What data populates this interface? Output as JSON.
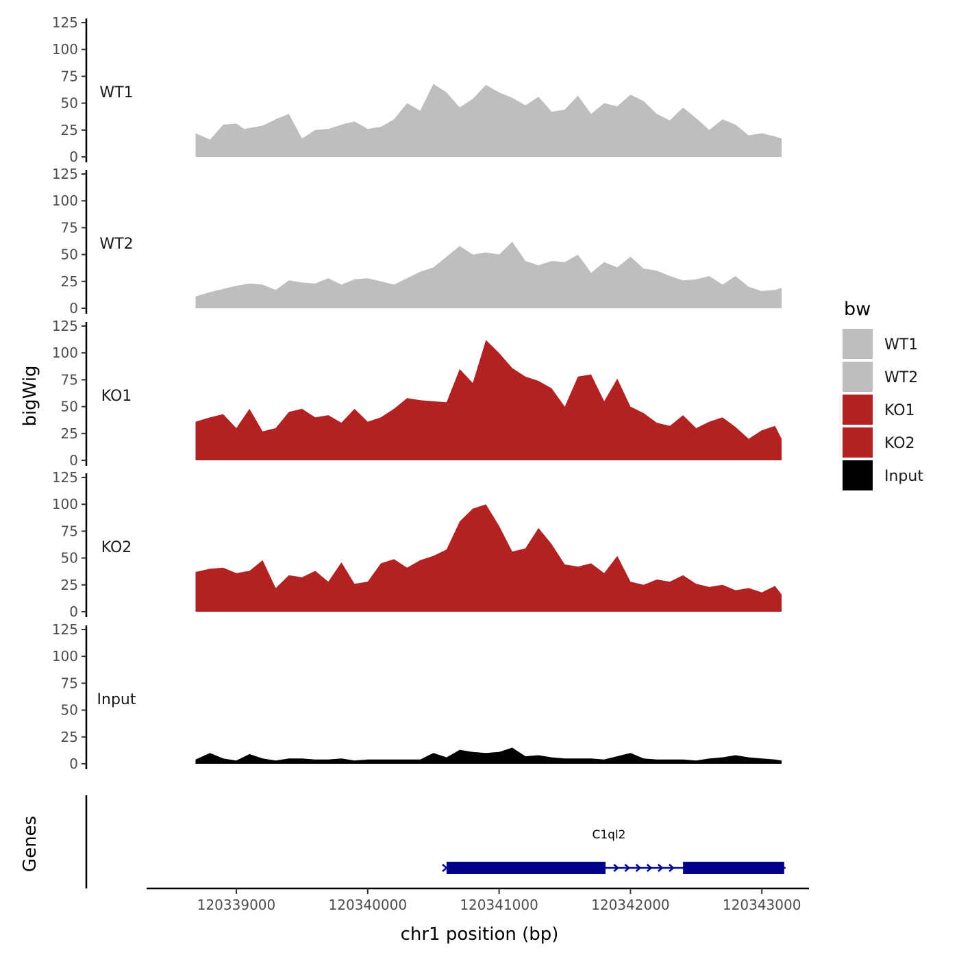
{
  "chart_data": {
    "type": "area",
    "ylabel": "bigWig",
    "xlabel": "chr1 position (bp)",
    "ylim": [
      0,
      125
    ],
    "y_ticks": [
      "0",
      "25",
      "50",
      "75",
      "100",
      "125"
    ],
    "xlim": [
      120338400,
      120343400
    ],
    "x_ticks": [
      {
        "value": 120339000,
        "label": "120339000"
      },
      {
        "value": 120340000,
        "label": "120340000"
      },
      {
        "value": 120341000,
        "label": "120341000"
      },
      {
        "value": 120342000,
        "label": "120342000"
      },
      {
        "value": 120343000,
        "label": "120343000"
      }
    ],
    "legend": {
      "title": "bw",
      "position": "right",
      "entries": [
        {
          "label": "WT1",
          "color": "#BEBEBE"
        },
        {
          "label": "WT2",
          "color": "#BEBEBE"
        },
        {
          "label": "KO1",
          "color": "#B22222"
        },
        {
          "label": "KO2",
          "color": "#B22222"
        },
        {
          "label": "Input",
          "color": "#000000"
        }
      ]
    },
    "series": [
      {
        "name": "WT1",
        "color": "#BEBEBE",
        "x": [
          120338690,
          120338800,
          120338900,
          120339000,
          120339060,
          120339100,
          120339200,
          120339300,
          120339400,
          120339500,
          120339600,
          120339700,
          120339800,
          120339900,
          120340000,
          120340100,
          120340200,
          120340300,
          120340400,
          120340500,
          120340600,
          120340700,
          120340800,
          120340900,
          120341000,
          120341100,
          120341200,
          120341300,
          120341400,
          120341500,
          120341600,
          120341700,
          120341800,
          120341900,
          120342000,
          120342100,
          120342200,
          120342300,
          120342400,
          120342500,
          120342600,
          120342700,
          120342800,
          120342900,
          120343000,
          120343100,
          120343150
        ],
        "values": [
          22,
          16,
          30,
          31,
          26,
          27,
          29,
          35,
          40,
          17,
          25,
          26,
          30,
          33,
          26,
          28,
          35,
          50,
          43,
          68,
          60,
          46,
          54,
          67,
          60,
          55,
          48,
          56,
          42,
          44,
          57,
          40,
          50,
          47,
          58,
          52,
          40,
          34,
          46,
          36,
          25,
          35,
          30,
          20,
          22,
          19,
          17
        ]
      },
      {
        "name": "WT2",
        "color": "#BEBEBE",
        "x": [
          120338690,
          120338800,
          120338900,
          120339000,
          120339100,
          120339200,
          120339300,
          120339400,
          120339500,
          120339600,
          120339700,
          120339800,
          120339900,
          120340000,
          120340100,
          120340200,
          120340300,
          120340400,
          120340500,
          120340600,
          120340700,
          120340800,
          120340900,
          120341000,
          120341100,
          120341200,
          120341300,
          120341400,
          120341500,
          120341600,
          120341700,
          120341800,
          120341900,
          120342000,
          120342100,
          120342200,
          120342300,
          120342400,
          120342500,
          120342600,
          120342700,
          120342800,
          120342900,
          120343000,
          120343100,
          120343150
        ],
        "values": [
          11,
          15,
          18,
          21,
          23,
          22,
          17,
          26,
          24,
          23,
          28,
          22,
          27,
          28,
          25,
          22,
          28,
          34,
          38,
          48,
          58,
          50,
          52,
          50,
          62,
          44,
          40,
          44,
          43,
          50,
          33,
          43,
          38,
          48,
          37,
          35,
          30,
          26,
          27,
          30,
          22,
          30,
          20,
          16,
          17,
          19
        ]
      },
      {
        "name": "KO1",
        "color": "#B22222",
        "x": [
          120338690,
          120338800,
          120338900,
          120339000,
          120339100,
          120339200,
          120339300,
          120339400,
          120339500,
          120339600,
          120339700,
          120339800,
          120339900,
          120340000,
          120340100,
          120340200,
          120340300,
          120340400,
          120340500,
          120340600,
          120340700,
          120340800,
          120340900,
          120341000,
          120341100,
          120341200,
          120341300,
          120341400,
          120341500,
          120341600,
          120341700,
          120341800,
          120341900,
          120342000,
          120342100,
          120342200,
          120342300,
          120342400,
          120342500,
          120342600,
          120342700,
          120342800,
          120342900,
          120343000,
          120343100,
          120343150
        ],
        "values": [
          36,
          40,
          43,
          30,
          48,
          27,
          30,
          45,
          48,
          40,
          42,
          35,
          48,
          36,
          40,
          48,
          58,
          56,
          55,
          54,
          85,
          72,
          112,
          100,
          86,
          78,
          74,
          67,
          50,
          78,
          80,
          55,
          76,
          50,
          44,
          35,
          32,
          42,
          30,
          36,
          40,
          31,
          20,
          28,
          32,
          20
        ]
      },
      {
        "name": "KO2",
        "color": "#B22222",
        "x": [
          120338690,
          120338800,
          120338900,
          120339000,
          120339100,
          120339200,
          120339300,
          120339400,
          120339500,
          120339600,
          120339700,
          120339800,
          120339900,
          120340000,
          120340100,
          120340200,
          120340300,
          120340400,
          120340500,
          120340600,
          120340700,
          120340800,
          120340900,
          120341000,
          120341100,
          120341200,
          120341300,
          120341400,
          120341500,
          120341600,
          120341700,
          120341800,
          120341900,
          120342000,
          120342100,
          120342200,
          120342300,
          120342400,
          120342500,
          120342600,
          120342700,
          120342800,
          120342900,
          120343000,
          120343100,
          120343150
        ],
        "values": [
          37,
          40,
          41,
          36,
          38,
          48,
          22,
          34,
          32,
          38,
          28,
          46,
          26,
          28,
          45,
          49,
          41,
          48,
          52,
          58,
          84,
          96,
          100,
          80,
          56,
          59,
          78,
          63,
          44,
          42,
          45,
          36,
          52,
          28,
          25,
          30,
          28,
          34,
          26,
          23,
          25,
          20,
          22,
          18,
          24,
          16
        ]
      },
      {
        "name": "Input",
        "color": "#000000",
        "x": [
          120338690,
          120338800,
          120338900,
          120339000,
          120339100,
          120339200,
          120339300,
          120339400,
          120339500,
          120339600,
          120339700,
          120339800,
          120339900,
          120340000,
          120340100,
          120340200,
          120340300,
          120340400,
          120340500,
          120340600,
          120340700,
          120340800,
          120340900,
          120341000,
          120341100,
          120341200,
          120341300,
          120341400,
          120341500,
          120341600,
          120341700,
          120341800,
          120341900,
          120342000,
          120342100,
          120342200,
          120342300,
          120342400,
          120342500,
          120342600,
          120342700,
          120342800,
          120342900,
          120343000,
          120343100,
          120343150
        ],
        "values": [
          4,
          10,
          5,
          3,
          9,
          5,
          3,
          5,
          5,
          4,
          4,
          5,
          3,
          4,
          4,
          4,
          4,
          4,
          10,
          6,
          13,
          11,
          10,
          11,
          15,
          7,
          8,
          6,
          5,
          5,
          5,
          4,
          7,
          10,
          5,
          4,
          4,
          4,
          3,
          5,
          6,
          8,
          6,
          5,
          4,
          3
        ]
      }
    ],
    "genes": {
      "title": "Genes",
      "items": [
        {
          "name": "C1ql2",
          "strand": "+",
          "start": 120340590,
          "end": 120343180,
          "exons": [
            [
              120340600,
              120341810
            ],
            [
              120342400,
              120343170
            ]
          ],
          "color": "#00008B"
        }
      ]
    }
  }
}
